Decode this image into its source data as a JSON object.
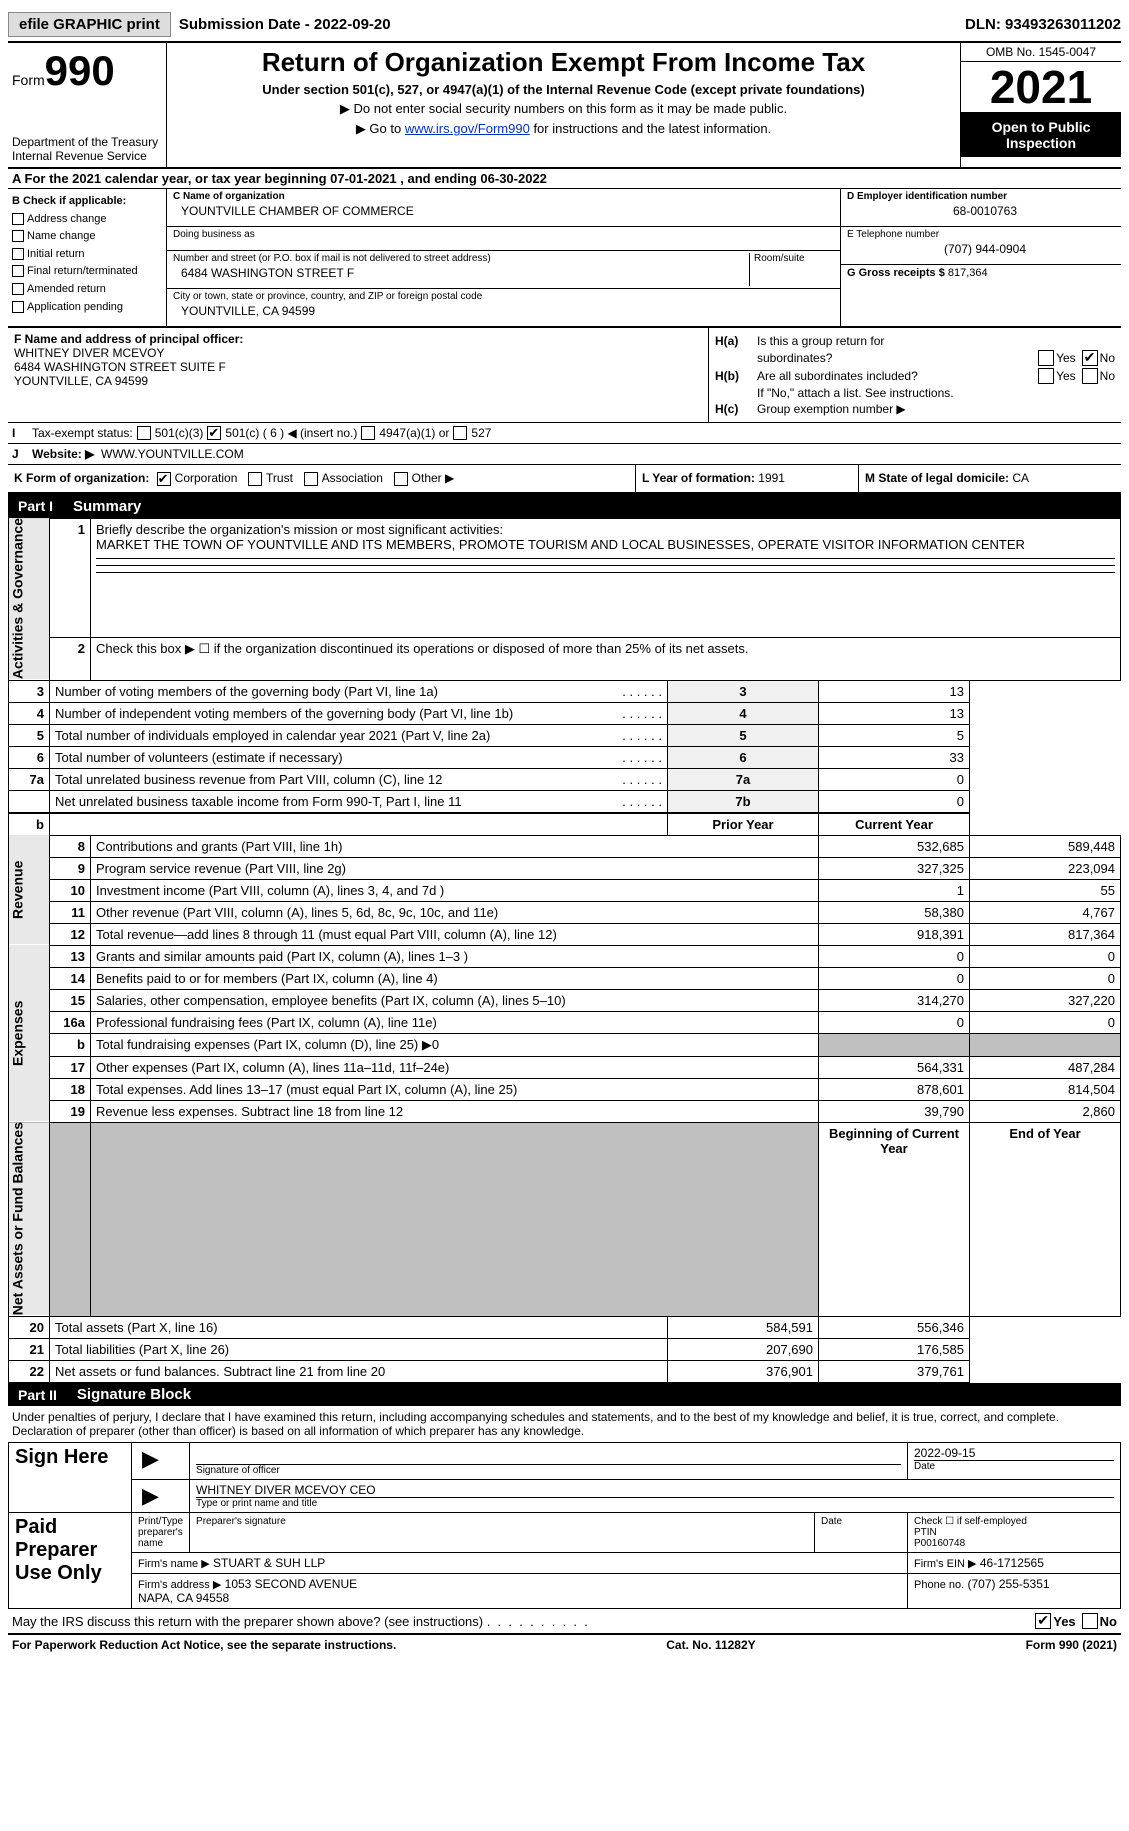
{
  "top": {
    "efile": "efile GRAPHIC print",
    "submission": "Submission Date - 2022-09-20",
    "dln": "DLN: 93493263011202"
  },
  "header": {
    "form_word": "Form",
    "form_num": "990",
    "dept": "Department of the Treasury\nInternal Revenue Service",
    "title": "Return of Organization Exempt From Income Tax",
    "subtitle": "Under section 501(c), 527, or 4947(a)(1) of the Internal Revenue Code (except private foundations)",
    "note1": "▶ Do not enter social security numbers on this form as it may be made public.",
    "note2_pre": "▶ Go to ",
    "note2_link": "www.irs.gov/Form990",
    "note2_post": " for instructions and the latest information.",
    "omb": "OMB No. 1545-0047",
    "year": "2021",
    "inspection": "Open to Public Inspection"
  },
  "period": "A For the 2021 calendar year, or tax year beginning 07-01-2021    , and ending 06-30-2022",
  "sectionB": {
    "label": "B Check if applicable:",
    "opts": [
      "Address change",
      "Name change",
      "Initial return",
      "Final return/terminated",
      "Amended return",
      "Application pending"
    ]
  },
  "sectionC": {
    "name_label": "C Name of organization",
    "name": "YOUNTVILLE CHAMBER OF COMMERCE",
    "dba_label": "Doing business as",
    "dba": "",
    "street_label": "Number and street (or P.O. box if mail is not delivered to street address)",
    "room_label": "Room/suite",
    "street": "6484 WASHINGTON STREET F",
    "city_label": "City or town, state or province, country, and ZIP or foreign postal code",
    "city": "YOUNTVILLE, CA  94599"
  },
  "sectionD": {
    "ein_label": "D Employer identification number",
    "ein": "68-0010763",
    "tel_label": "E Telephone number",
    "tel": "(707) 944-0904",
    "gross_label": "G Gross receipts $",
    "gross": "817,364"
  },
  "sectionF": {
    "label": "F  Name and address of principal officer:",
    "name": "WHITNEY DIVER MCEVOY",
    "addr1": "6484 WASHINGTON STREET SUITE F",
    "addr2": "YOUNTVILLE, CA  94599"
  },
  "sectionH": {
    "a_label": "H(a)",
    "a_text1": "Is this a group return for",
    "a_text2": "subordinates?",
    "b_label": "H(b)",
    "b_text": "Are all subordinates included?",
    "b_note": "If \"No,\" attach a list. See instructions.",
    "c_label": "H(c)",
    "c_text": "Group exemption number ▶",
    "ha_no_checked": true
  },
  "rowI": {
    "label": "I",
    "text": "Tax-exempt status:",
    "opt1": "501(c)(3)",
    "opt2": "501(c) (",
    "opt2_num": "6",
    "opt2_suffix": ") ◀ (insert no.)",
    "opt3": "4947(a)(1) or",
    "opt4": "527",
    "checked_idx": 1
  },
  "rowJ": {
    "label": "J",
    "text": "Website: ▶",
    "value": "WWW.YOUNTVILLE.COM"
  },
  "rowK": {
    "label": "K Form of organization:",
    "opts": [
      "Corporation",
      "Trust",
      "Association",
      "Other ▶"
    ],
    "checked_idx": 0
  },
  "rowL": {
    "label": "L Year of formation:",
    "value": "1991"
  },
  "rowM": {
    "label": "M State of legal domicile:",
    "value": "CA"
  },
  "part1": {
    "label": "Part I",
    "title": "Summary"
  },
  "summary": {
    "line1_label": "1",
    "line1_text": "Briefly describe the organization's mission or most significant activities:",
    "line1_value": "MARKET THE TOWN OF YOUNTVILLE AND ITS MEMBERS, PROMOTE TOURISM AND LOCAL BUSINESSES, OPERATE VISITOR INFORMATION CENTER",
    "line2_text": "Check this box ▶ ☐  if the organization discontinued its operations or disposed of more than 25% of its net assets.",
    "side1": "Activities & Governance",
    "side2": "Revenue",
    "side3": "Expenses",
    "side4": "Net Assets or Fund Balances",
    "prior_head": "Prior Year",
    "current_head": "Current Year",
    "begin_head": "Beginning of Current Year",
    "end_head": "End of Year",
    "rows_gov": [
      {
        "n": "3",
        "t": "Number of voting members of the governing body (Part VI, line 1a)",
        "box": "3",
        "v": "13"
      },
      {
        "n": "4",
        "t": "Number of independent voting members of the governing body (Part VI, line 1b)",
        "box": "4",
        "v": "13"
      },
      {
        "n": "5",
        "t": "Total number of individuals employed in calendar year 2021 (Part V, line 2a)",
        "box": "5",
        "v": "5"
      },
      {
        "n": "6",
        "t": "Total number of volunteers (estimate if necessary)",
        "box": "6",
        "v": "33"
      },
      {
        "n": "7a",
        "t": "Total unrelated business revenue from Part VIII, column (C), line 12",
        "box": "7a",
        "v": "0"
      },
      {
        "n": "",
        "t": "Net unrelated business taxable income from Form 990-T, Part I, line 11",
        "box": "7b",
        "v": "0"
      }
    ],
    "rows_rev": [
      {
        "n": "8",
        "t": "Contributions and grants (Part VIII, line 1h)",
        "p": "532,685",
        "c": "589,448"
      },
      {
        "n": "9",
        "t": "Program service revenue (Part VIII, line 2g)",
        "p": "327,325",
        "c": "223,094"
      },
      {
        "n": "10",
        "t": "Investment income (Part VIII, column (A), lines 3, 4, and 7d )",
        "p": "1",
        "c": "55"
      },
      {
        "n": "11",
        "t": "Other revenue (Part VIII, column (A), lines 5, 6d, 8c, 9c, 10c, and 11e)",
        "p": "58,380",
        "c": "4,767"
      },
      {
        "n": "12",
        "t": "Total revenue—add lines 8 through 11 (must equal Part VIII, column (A), line 12)",
        "p": "918,391",
        "c": "817,364"
      }
    ],
    "rows_exp": [
      {
        "n": "13",
        "t": "Grants and similar amounts paid (Part IX, column (A), lines 1–3 )",
        "p": "0",
        "c": "0"
      },
      {
        "n": "14",
        "t": "Benefits paid to or for members (Part IX, column (A), line 4)",
        "p": "0",
        "c": "0"
      },
      {
        "n": "15",
        "t": "Salaries, other compensation, employee benefits (Part IX, column (A), lines 5–10)",
        "p": "314,270",
        "c": "327,220"
      },
      {
        "n": "16a",
        "t": "Professional fundraising fees (Part IX, column (A), line 11e)",
        "p": "0",
        "c": "0"
      },
      {
        "n": "b",
        "t": "Total fundraising expenses (Part IX, column (D), line 25) ▶0",
        "p": "",
        "c": "",
        "shaded": true
      },
      {
        "n": "17",
        "t": "Other expenses (Part IX, column (A), lines 11a–11d, 11f–24e)",
        "p": "564,331",
        "c": "487,284"
      },
      {
        "n": "18",
        "t": "Total expenses. Add lines 13–17 (must equal Part IX, column (A), line 25)",
        "p": "878,601",
        "c": "814,504"
      },
      {
        "n": "19",
        "t": "Revenue less expenses. Subtract line 18 from line 12",
        "p": "39,790",
        "c": "2,860"
      }
    ],
    "rows_net": [
      {
        "n": "20",
        "t": "Total assets (Part X, line 16)",
        "p": "584,591",
        "c": "556,346"
      },
      {
        "n": "21",
        "t": "Total liabilities (Part X, line 26)",
        "p": "207,690",
        "c": "176,585"
      },
      {
        "n": "22",
        "t": "Net assets or fund balances. Subtract line 21 from line 20",
        "p": "376,901",
        "c": "379,761"
      }
    ]
  },
  "part2": {
    "label": "Part II",
    "title": "Signature Block"
  },
  "sig": {
    "disclaimer": "Under penalties of perjury, I declare that I have examined this return, including accompanying schedules and statements, and to the best of my knowledge and belief, it is true, correct, and complete. Declaration of preparer (other than officer) is based on all information of which preparer has any knowledge.",
    "sign_here": "Sign Here",
    "sig_officer": "Signature of officer",
    "sig_date": "2022-09-15",
    "date_label": "Date",
    "officer_name": "WHITNEY DIVER MCEVOY CEO",
    "type_label": "Type or print name and title",
    "paid": "Paid Preparer Use Only",
    "prep_name_label": "Print/Type preparer's name",
    "prep_sig_label": "Preparer's signature",
    "check_if": "Check ☐ if self-employed",
    "ptin_label": "PTIN",
    "ptin": "P00160748",
    "firm_name_label": "Firm's name    ▶",
    "firm_name": "STUART & SUH LLP",
    "firm_ein_label": "Firm's EIN ▶",
    "firm_ein": "46-1712565",
    "firm_addr_label": "Firm's address ▶",
    "firm_addr": "1053 SECOND AVENUE\nNAPA, CA  94558",
    "phone_label": "Phone no.",
    "phone": "(707) 255-5351",
    "discuss": "May the IRS discuss this return with the preparer shown above? (see instructions)",
    "discuss_yes_checked": true
  },
  "footer": {
    "left": "For Paperwork Reduction Act Notice, see the separate instructions.",
    "center": "Cat. No. 11282Y",
    "right": "Form 990 (2021)"
  }
}
